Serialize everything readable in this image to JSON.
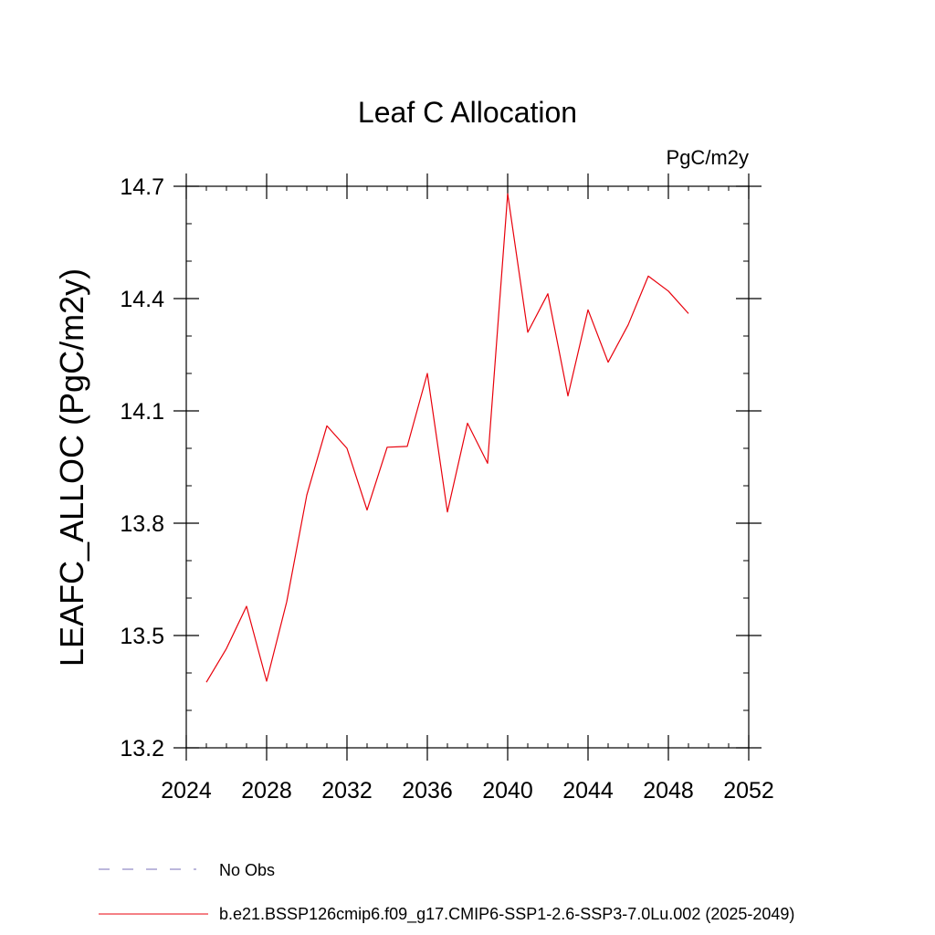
{
  "chart_data": {
    "type": "line",
    "title": "Leaf C Allocation",
    "units_label": "PgC/m2y",
    "xlabel": "",
    "ylabel": "LEAFC_ALLOC  (PgC/m2y)",
    "xlim": [
      2024,
      2052
    ],
    "ylim": [
      13.2,
      14.7
    ],
    "x_ticks": [
      2024,
      2028,
      2032,
      2036,
      2040,
      2044,
      2048,
      2052
    ],
    "x_tick_labels": [
      "2024",
      "2028",
      "2032",
      "2036",
      "2040",
      "2044",
      "2048",
      "2052"
    ],
    "y_ticks": [
      13.2,
      13.5,
      13.8,
      14.1,
      14.4,
      14.7
    ],
    "y_tick_labels": [
      "13.2",
      "13.5",
      "13.8",
      "14.1",
      "14.4",
      "14.7"
    ],
    "y_minor_step": 0.1,
    "x_minor_step": 1,
    "series": [
      {
        "name": "b.e21.BSSP126cmip6.f09_g17.CMIP6-SSP1-2.6-SSP3-7.0Lu.002 (2025-2049)",
        "color": "#e8000b",
        "style": "solid",
        "x": [
          2025,
          2026,
          2027,
          2028,
          2029,
          2030,
          2031,
          2032,
          2033,
          2034,
          2035,
          2036,
          2037,
          2038,
          2039,
          2040,
          2041,
          2042,
          2043,
          2044,
          2045,
          2046,
          2047,
          2048,
          2049
        ],
        "values": [
          13.375,
          13.465,
          13.578,
          13.378,
          13.59,
          13.875,
          14.06,
          14.0,
          13.835,
          14.003,
          14.005,
          14.2,
          13.83,
          14.067,
          13.96,
          14.68,
          14.31,
          14.413,
          14.14,
          14.37,
          14.23,
          14.33,
          14.46,
          14.42,
          14.36
        ]
      }
    ],
    "legend": [
      {
        "label": "No Obs",
        "color": "#7a6fb8",
        "style": "dashed"
      },
      {
        "label": "b.e21.BSSP126cmip6.f09_g17.CMIP6-SSP1-2.6-SSP3-7.0Lu.002 (2025-2049)",
        "color": "#e8000b",
        "style": "solid"
      }
    ],
    "legend_position": "bottom-left"
  }
}
